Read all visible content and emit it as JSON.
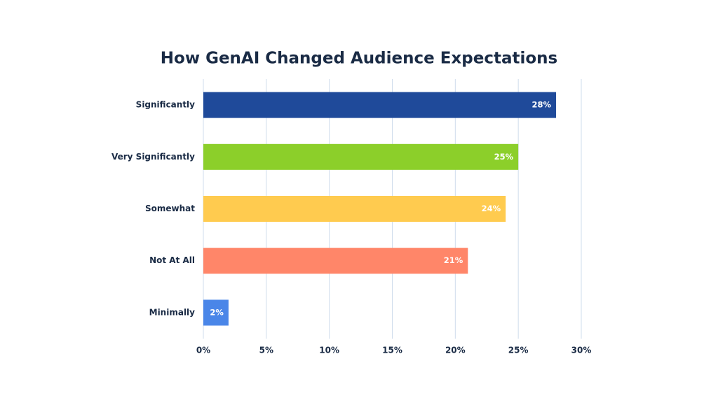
{
  "chart_data": {
    "type": "hbar",
    "title": "How GenAI Changed Audience Expectations",
    "categories": [
      "Significantly",
      "Very Significantly",
      "Somewhat",
      "Not At All",
      "Minimally"
    ],
    "values": [
      28,
      25,
      24,
      21,
      2
    ],
    "value_labels": [
      "28%",
      "25%",
      "24%",
      "21%",
      "2%"
    ],
    "colors": [
      "#1f4a9a",
      "#8ccf2a",
      "#ffcb4f",
      "#ff8669",
      "#4a86e8"
    ],
    "xlim": [
      0,
      30
    ],
    "xticks": [
      {
        "value": 0,
        "label": "0%"
      },
      {
        "value": 5,
        "label": "5%"
      },
      {
        "value": 10,
        "label": "10%"
      },
      {
        "value": 15,
        "label": "15%"
      },
      {
        "value": 20,
        "label": "20%"
      },
      {
        "value": 25,
        "label": "25%"
      },
      {
        "value": 30,
        "label": "30%"
      }
    ],
    "grid": true
  }
}
